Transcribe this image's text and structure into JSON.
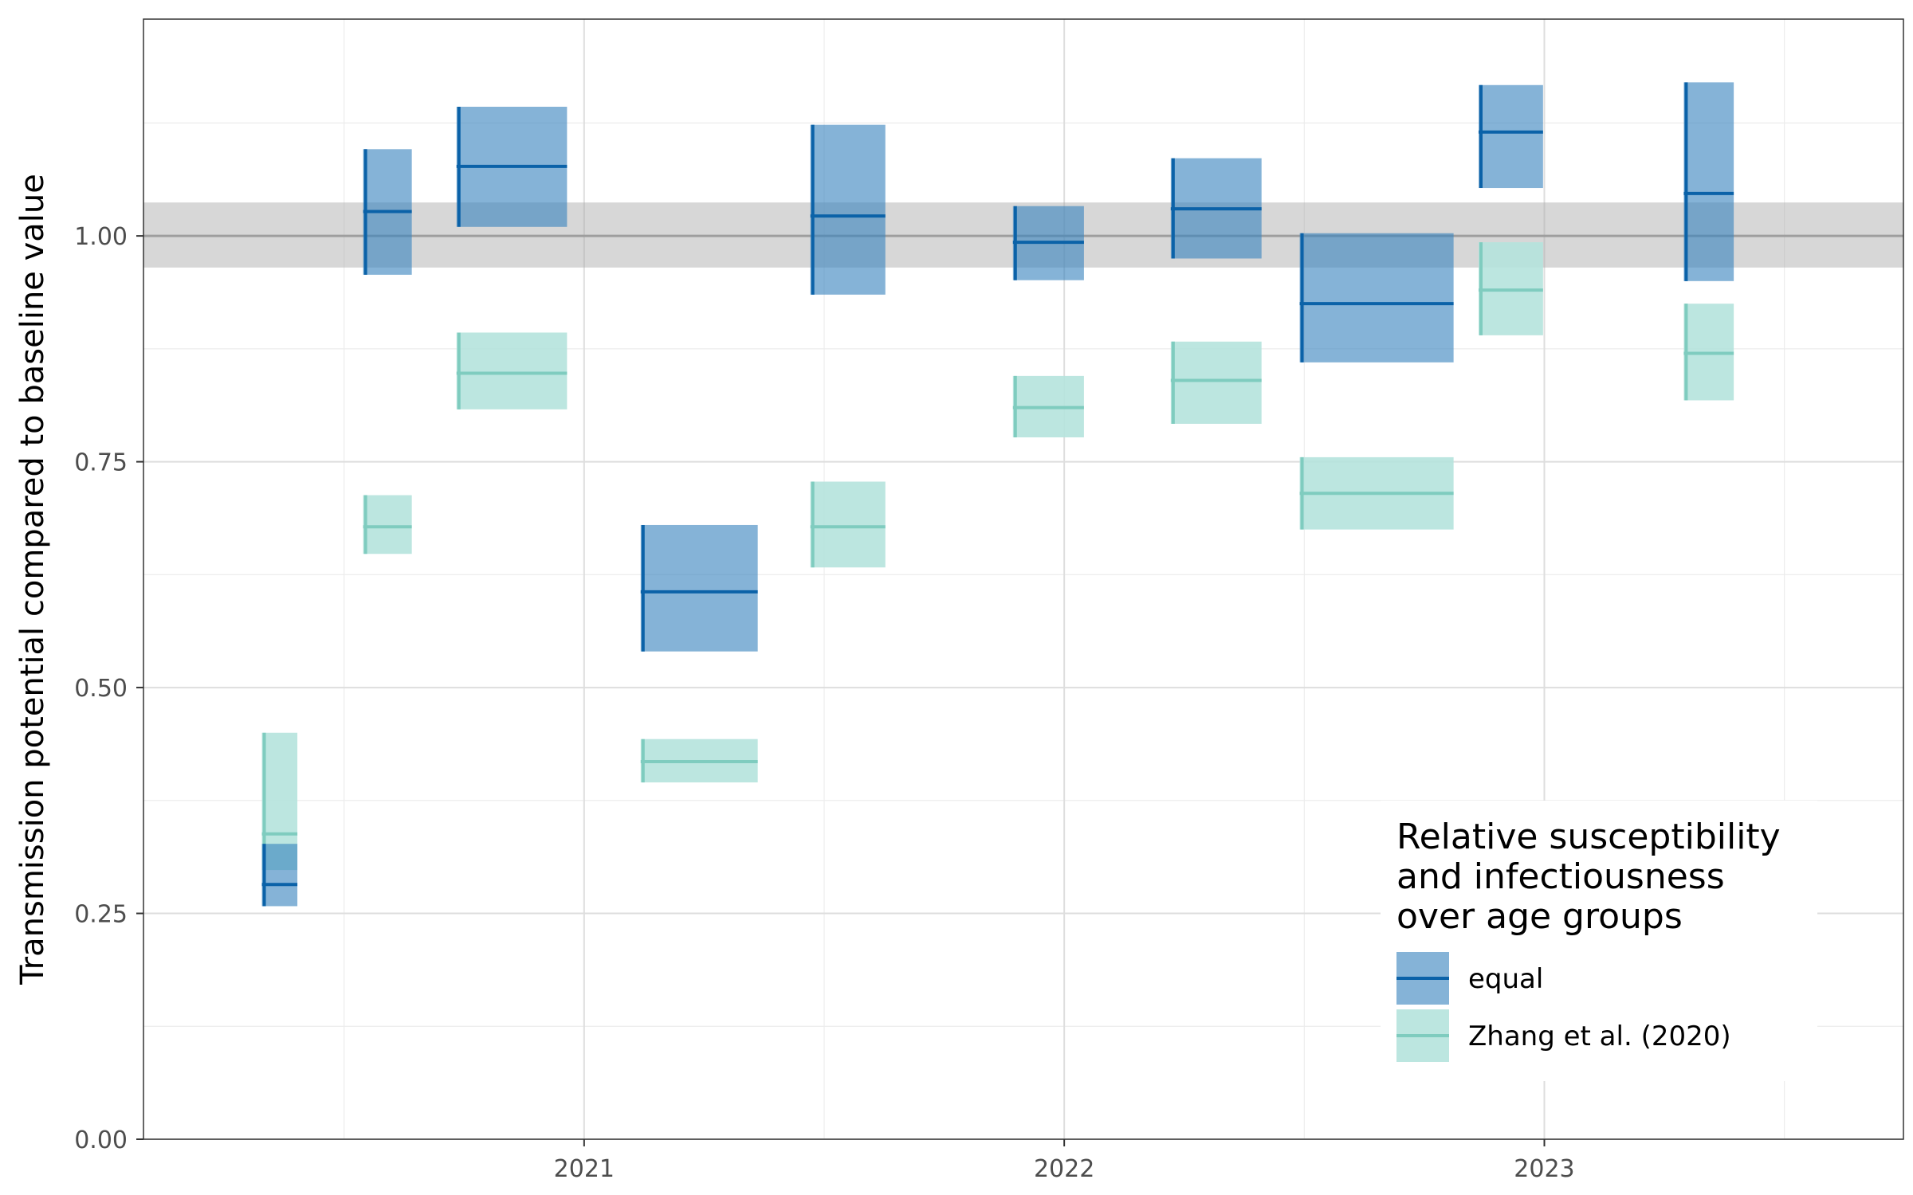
{
  "chart_data": {
    "type": "crossbar",
    "xlabel": "",
    "ylabel": "Transmission potential compared to baseline value",
    "xlim": [
      "2020-02-01",
      "2023-10-01"
    ],
    "ylim": [
      0,
      1.24
    ],
    "x_ticks": [
      {
        "label": "2021",
        "date": "2021-01-01"
      },
      {
        "label": "2022",
        "date": "2022-01-01"
      },
      {
        "label": "2023",
        "date": "2023-01-01"
      }
    ],
    "y_ticks": [
      {
        "label": "0.00",
        "value": 0.0
      },
      {
        "label": "0.25",
        "value": 0.25
      },
      {
        "label": "0.50",
        "value": 0.5
      },
      {
        "label": "0.75",
        "value": 0.75
      },
      {
        "label": "1.00",
        "value": 1.0
      }
    ],
    "reference": {
      "value": 1.0,
      "low": 0.965,
      "high": 1.037
    },
    "grid": true,
    "legend": {
      "title": [
        "Relative susceptibility",
        "and infectiousness",
        "over age groups"
      ],
      "placement": "bottom-right"
    },
    "series": [
      {
        "name": "equal",
        "color": "#0b62a8",
        "fill": "#3a84be",
        "points": [
          {
            "start": "2020-05-01",
            "end": "2020-05-28",
            "mid": 0.282,
            "low": 0.258,
            "high": 0.327
          },
          {
            "start": "2020-07-17",
            "end": "2020-08-23",
            "mid": 1.027,
            "low": 0.957,
            "high": 1.096
          },
          {
            "start": "2020-09-26",
            "end": "2020-12-19",
            "mid": 1.077,
            "low": 1.01,
            "high": 1.143
          },
          {
            "start": "2021-02-13",
            "end": "2021-05-13",
            "mid": 0.606,
            "low": 0.54,
            "high": 0.68
          },
          {
            "start": "2021-06-22",
            "end": "2021-08-18",
            "mid": 1.022,
            "low": 0.935,
            "high": 1.123
          },
          {
            "start": "2021-11-23",
            "end": "2022-01-16",
            "mid": 0.993,
            "low": 0.951,
            "high": 1.033
          },
          {
            "start": "2022-03-23",
            "end": "2022-05-31",
            "mid": 1.03,
            "low": 0.975,
            "high": 1.086
          },
          {
            "start": "2022-06-29",
            "end": "2022-10-24",
            "mid": 0.925,
            "low": 0.86,
            "high": 1.003
          },
          {
            "start": "2022-11-12",
            "end": "2022-12-31",
            "mid": 1.115,
            "low": 1.053,
            "high": 1.167
          },
          {
            "start": "2023-04-17",
            "end": "2023-05-25",
            "mid": 1.047,
            "low": 0.95,
            "high": 1.17
          }
        ]
      },
      {
        "name": "Zhang et al. (2020)",
        "color": "#7fccbf",
        "fill": "#b5e3dd",
        "points": [
          {
            "start": "2020-05-01",
            "end": "2020-05-28",
            "mid": 0.338,
            "low": 0.298,
            "high": 0.45
          },
          {
            "start": "2020-07-17",
            "end": "2020-08-23",
            "mid": 0.678,
            "low": 0.648,
            "high": 0.713
          },
          {
            "start": "2020-09-26",
            "end": "2020-12-19",
            "mid": 0.848,
            "low": 0.808,
            "high": 0.893
          },
          {
            "start": "2021-02-13",
            "end": "2021-05-13",
            "mid": 0.418,
            "low": 0.395,
            "high": 0.443
          },
          {
            "start": "2021-06-22",
            "end": "2021-08-18",
            "mid": 0.678,
            "low": 0.633,
            "high": 0.728
          },
          {
            "start": "2021-11-23",
            "end": "2022-01-16",
            "mid": 0.81,
            "low": 0.777,
            "high": 0.845
          },
          {
            "start": "2022-03-23",
            "end": "2022-05-31",
            "mid": 0.84,
            "low": 0.792,
            "high": 0.883
          },
          {
            "start": "2022-06-29",
            "end": "2022-10-24",
            "mid": 0.715,
            "low": 0.675,
            "high": 0.755
          },
          {
            "start": "2022-11-12",
            "end": "2022-12-31",
            "mid": 0.94,
            "low": 0.89,
            "high": 0.993
          },
          {
            "start": "2023-04-17",
            "end": "2023-05-25",
            "mid": 0.87,
            "low": 0.818,
            "high": 0.925
          }
        ]
      }
    ]
  }
}
